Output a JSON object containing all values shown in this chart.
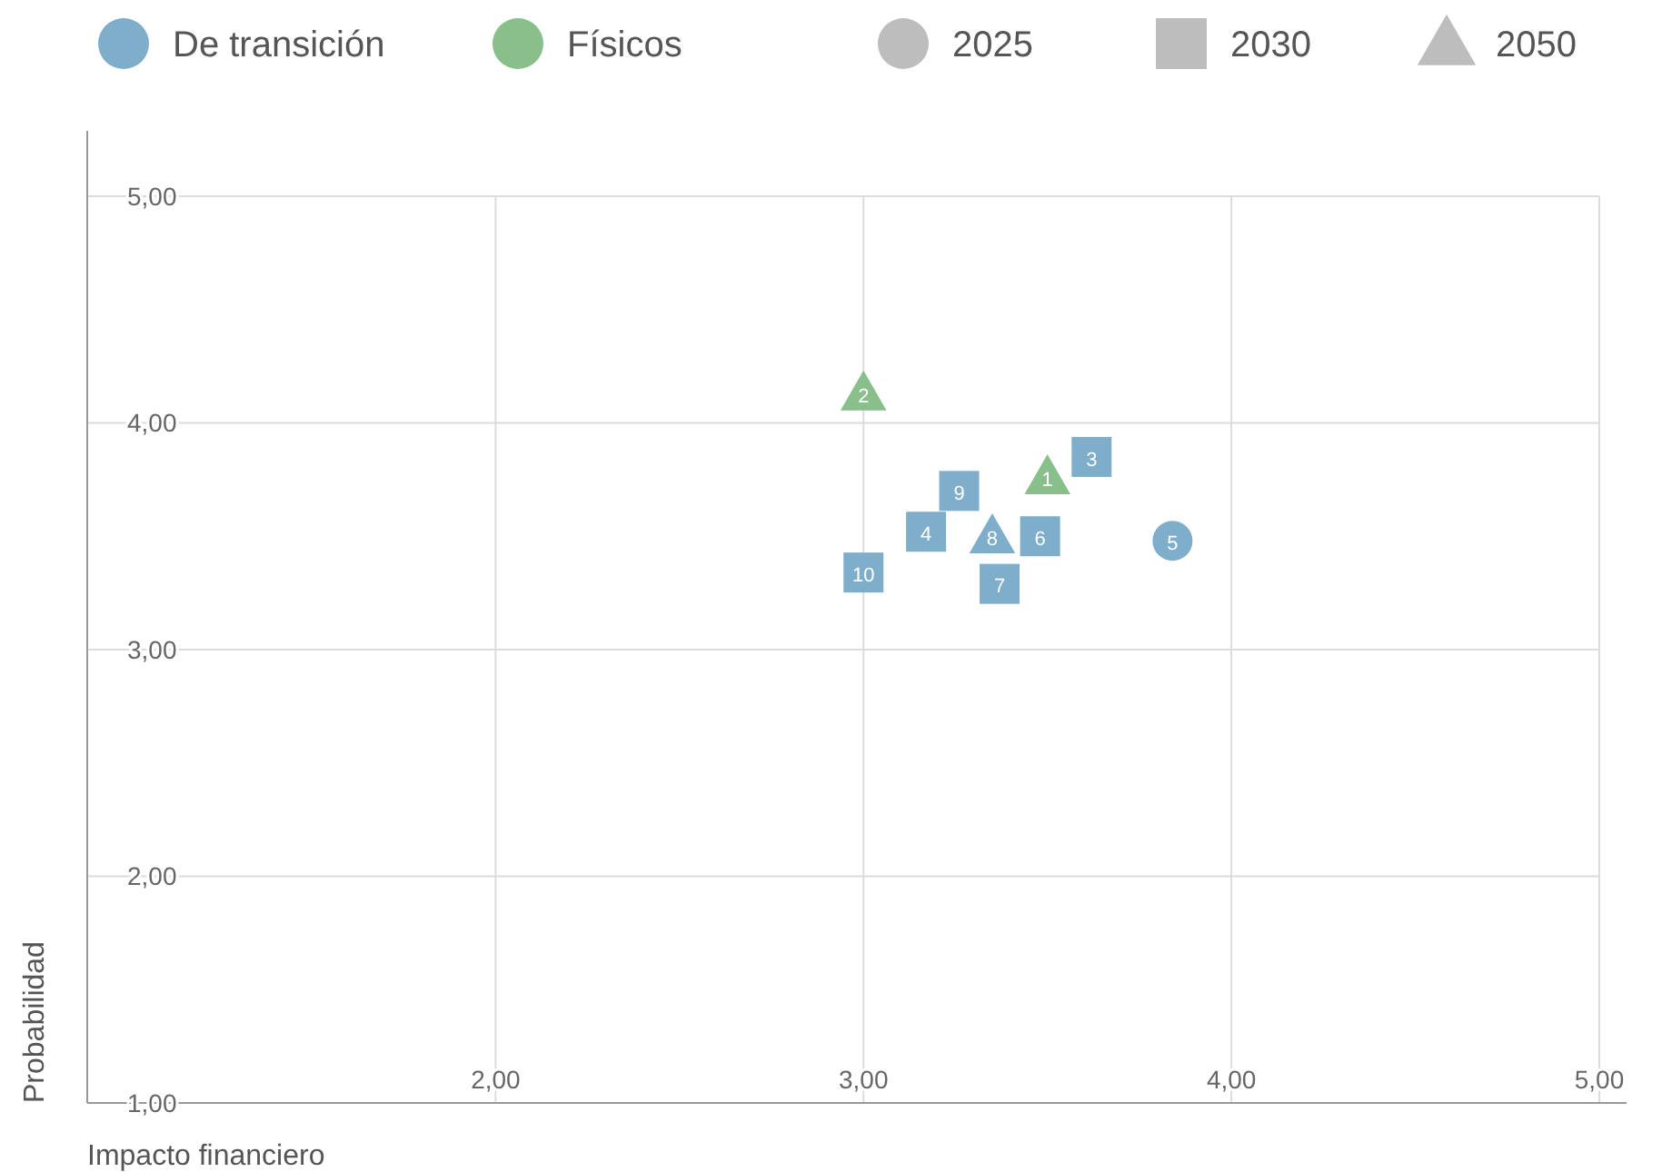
{
  "chart_data": {
    "type": "scatter",
    "xlabel": "Impacto financiero",
    "ylabel": "Probabilidad",
    "xlim": [
      0.89,
      5
    ],
    "ylim": [
      1,
      5
    ],
    "xticks": [
      {
        "value": 2,
        "label": "2,00"
      },
      {
        "value": 3,
        "label": "3,00"
      },
      {
        "value": 4,
        "label": "4,00"
      },
      {
        "value": 5,
        "label": "5,00"
      }
    ],
    "yticks": [
      {
        "value": 1,
        "label": "1,00"
      },
      {
        "value": 2,
        "label": "2,00"
      },
      {
        "value": 3,
        "label": "3,00"
      },
      {
        "value": 4,
        "label": "4,00"
      },
      {
        "value": 5,
        "label": "5,00"
      }
    ],
    "grid": true,
    "legend": "top",
    "series": [
      {
        "name": "De transición",
        "color": "#7eaec9",
        "marker": "circle"
      },
      {
        "name": "Físicos",
        "color": "#88bf8a",
        "marker": "circle"
      },
      {
        "name": "2025",
        "color": "#bdbdbd",
        "marker": "circle"
      },
      {
        "name": "2030",
        "color": "#bdbdbd",
        "marker": "square"
      },
      {
        "name": "2050",
        "color": "#bdbdbd",
        "marker": "triangle"
      },
      {
        "color": "#7eaec9",
        "marker": "circle",
        "x": [
          3.84
        ],
        "values": [
          3.48
        ]
      },
      {
        "color": "#7eaec9",
        "marker": "square",
        "x": [
          3.62,
          3.26,
          3.17,
          3.48,
          3.0,
          3.37
        ],
        "values": [
          3.85,
          3.7,
          3.52,
          3.5,
          3.34,
          3.29
        ]
      },
      {
        "color": "#7eaec9",
        "marker": "triangle",
        "x": [
          3.35
        ],
        "values": [
          3.5
        ]
      },
      {
        "color": "#88bf8a",
        "marker": "triangle",
        "x": [
          3.0,
          3.5
        ],
        "values": [
          4.13,
          3.76
        ]
      }
    ],
    "annotations": [
      {
        "text": "5",
        "x": 3.84,
        "y": 3.48
      },
      {
        "text": "3",
        "x": 3.62,
        "y": 3.85
      },
      {
        "text": "9",
        "x": 3.26,
        "y": 3.7
      },
      {
        "text": "4",
        "x": 3.17,
        "y": 3.52
      },
      {
        "text": "6",
        "x": 3.48,
        "y": 3.5
      },
      {
        "text": "10",
        "x": 3.0,
        "y": 3.34
      },
      {
        "text": "7",
        "x": 3.37,
        "y": 3.29
      },
      {
        "text": "8",
        "x": 3.35,
        "y": 3.5
      },
      {
        "text": "2",
        "x": 3.0,
        "y": 4.13
      },
      {
        "text": "1",
        "x": 3.5,
        "y": 3.76
      }
    ]
  }
}
